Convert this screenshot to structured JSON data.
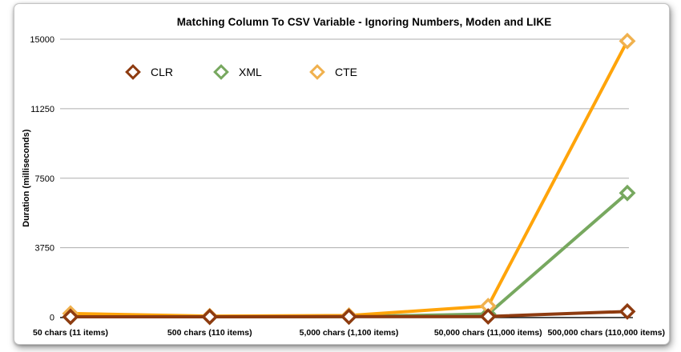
{
  "chart_data": {
    "type": "line",
    "title": "Matching Column To CSV Variable - Ignoring Numbers, Moden and LIKE",
    "xlabel": "",
    "ylabel": "Duration (milliseconds)",
    "ylim": [
      0,
      15000
    ],
    "yticks": [
      0,
      3750,
      7500,
      11250,
      15000
    ],
    "grid": true,
    "legend_position": "top-left-inside",
    "categories": [
      "50 chars (11 items)",
      "500 chars (110 items)",
      "5,000 chars (1,100 items)",
      "50,000 chars (11,000 items)",
      "500,000 chars (110,000 items)"
    ],
    "series": [
      {
        "name": "CLR",
        "color": "#8E3B10",
        "marker_border": "#8E3B10",
        "values": [
          20,
          20,
          30,
          40,
          310
        ]
      },
      {
        "name": "XML",
        "color": "#77A85F",
        "marker_border": "#77A85F",
        "values": [
          20,
          20,
          30,
          170,
          6700
        ]
      },
      {
        "name": "CTE",
        "color": "#FFA40A",
        "marker_border": "#F0B14E",
        "values": [
          200,
          60,
          90,
          600,
          14900
        ]
      }
    ],
    "draw_order": [
      1,
      2,
      0
    ]
  },
  "colors": {
    "grid_line": "#ADADAD",
    "axis_line": "#000000",
    "text": "#000000",
    "frame_border": "#C4C4C4",
    "marker_fill": "#FFFFFF",
    "background": "#FFFFFF"
  }
}
